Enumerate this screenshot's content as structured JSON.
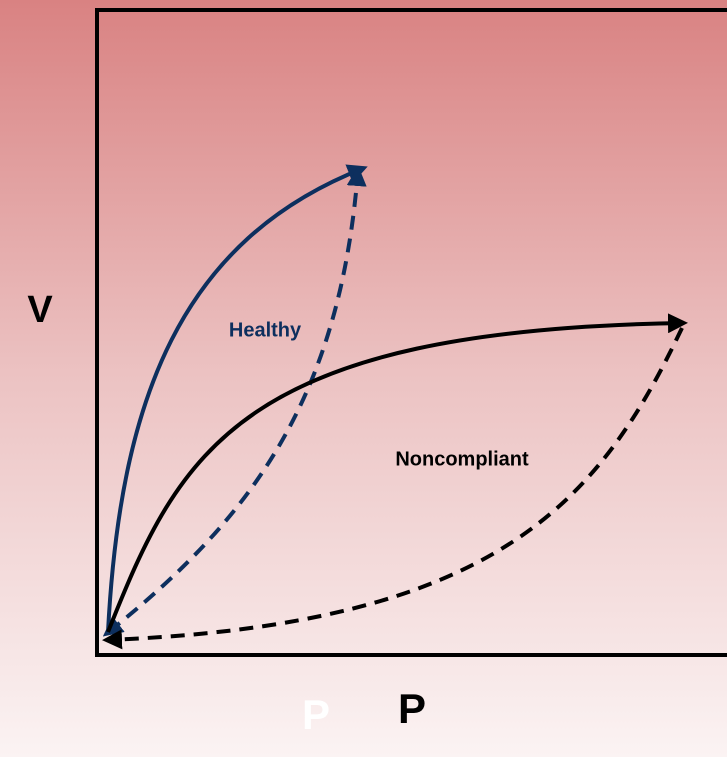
{
  "labels": {
    "y_axis": "V",
    "x_axis_ghost": "P",
    "x_axis": "P",
    "healthy": "Healthy",
    "noncompliant": "Noncompliant"
  }
}
